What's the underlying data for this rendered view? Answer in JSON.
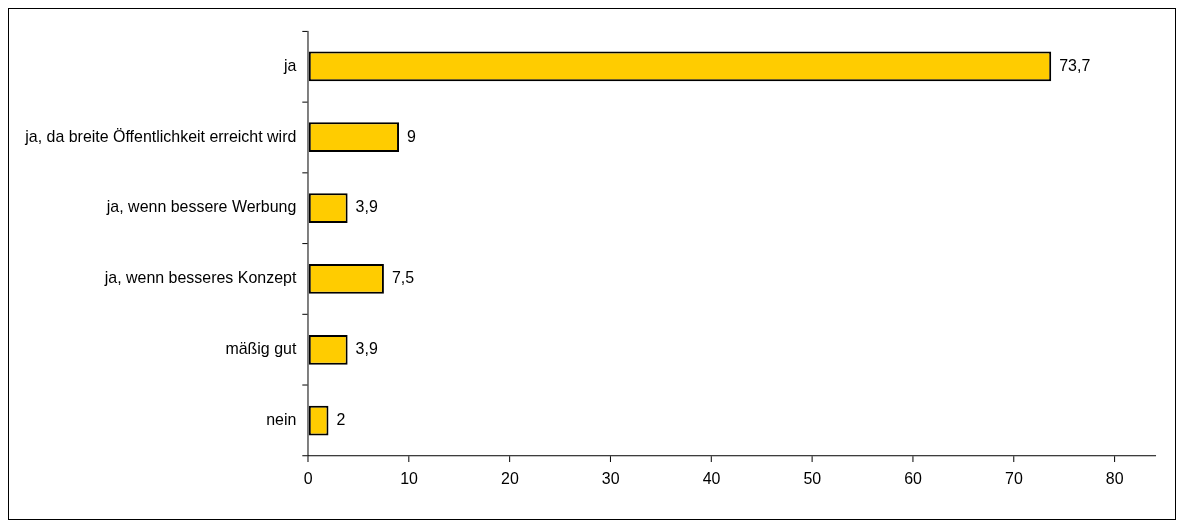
{
  "chart_data": {
    "type": "bar",
    "orientation": "horizontal",
    "categories": [
      "ja",
      "ja, da breite Öffentlichkeit erreicht wird",
      "ja, wenn bessere Werbung",
      "ja, wenn besseres Konzept",
      "mäßig gut",
      "nein"
    ],
    "values": [
      73.7,
      9,
      3.9,
      7.5,
      3.9,
      2
    ],
    "value_labels": [
      "73,7",
      "9",
      "3,9",
      "7,5",
      "3,9",
      "2"
    ],
    "color": "#ffcc00",
    "xlim": [
      0,
      84
    ],
    "xticks": [
      0,
      10,
      20,
      30,
      40,
      50,
      60,
      70,
      80
    ],
    "grid": false,
    "legend": false
  }
}
